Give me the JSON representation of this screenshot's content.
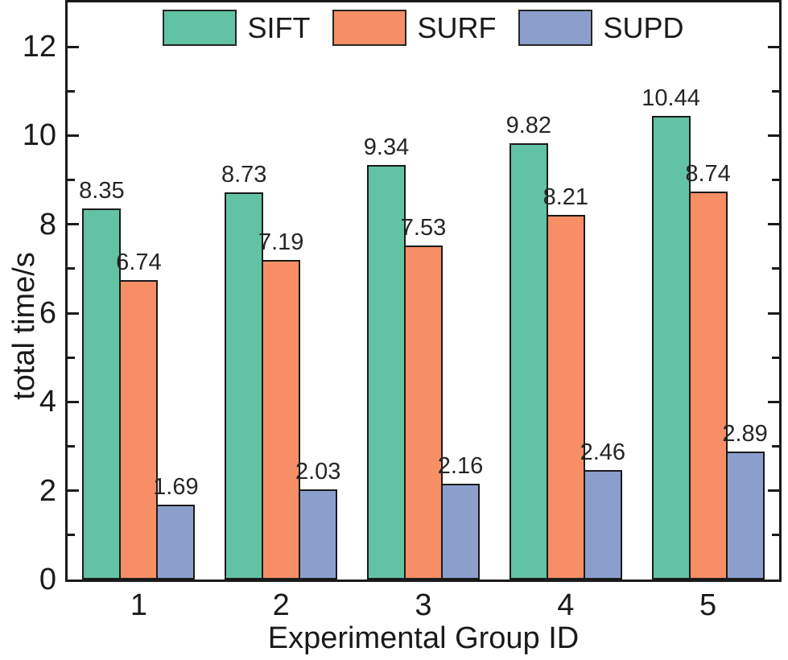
{
  "chart_data": {
    "type": "bar",
    "title": "",
    "xlabel": "Experimental Group ID",
    "ylabel": "total time/s",
    "categories": [
      "1",
      "2",
      "3",
      "4",
      "5"
    ],
    "series": [
      {
        "name": "SIFT",
        "color": "#62C2A4",
        "values": [
          8.35,
          8.73,
          9.34,
          9.82,
          10.44
        ]
      },
      {
        "name": "SURF",
        "color": "#F88E65",
        "values": [
          6.74,
          7.19,
          7.53,
          8.21,
          8.74
        ]
      },
      {
        "name": "SUPD",
        "color": "#8C9FCC",
        "values": [
          1.69,
          2.03,
          2.16,
          2.46,
          2.89
        ]
      }
    ],
    "ylim": [
      0,
      13
    ],
    "y_major_ticks": [
      0,
      2,
      4,
      6,
      8,
      10,
      12
    ],
    "y_minor_ticks": [
      1,
      3,
      5,
      7,
      9,
      11
    ],
    "grid": false,
    "legend_position": "top-center",
    "data_labels": true,
    "data_label_decimals": 2
  },
  "style": {
    "axis_color": "#1a1a1a",
    "bar_border_color": "#1a1a1a",
    "label_color": "#262626"
  }
}
